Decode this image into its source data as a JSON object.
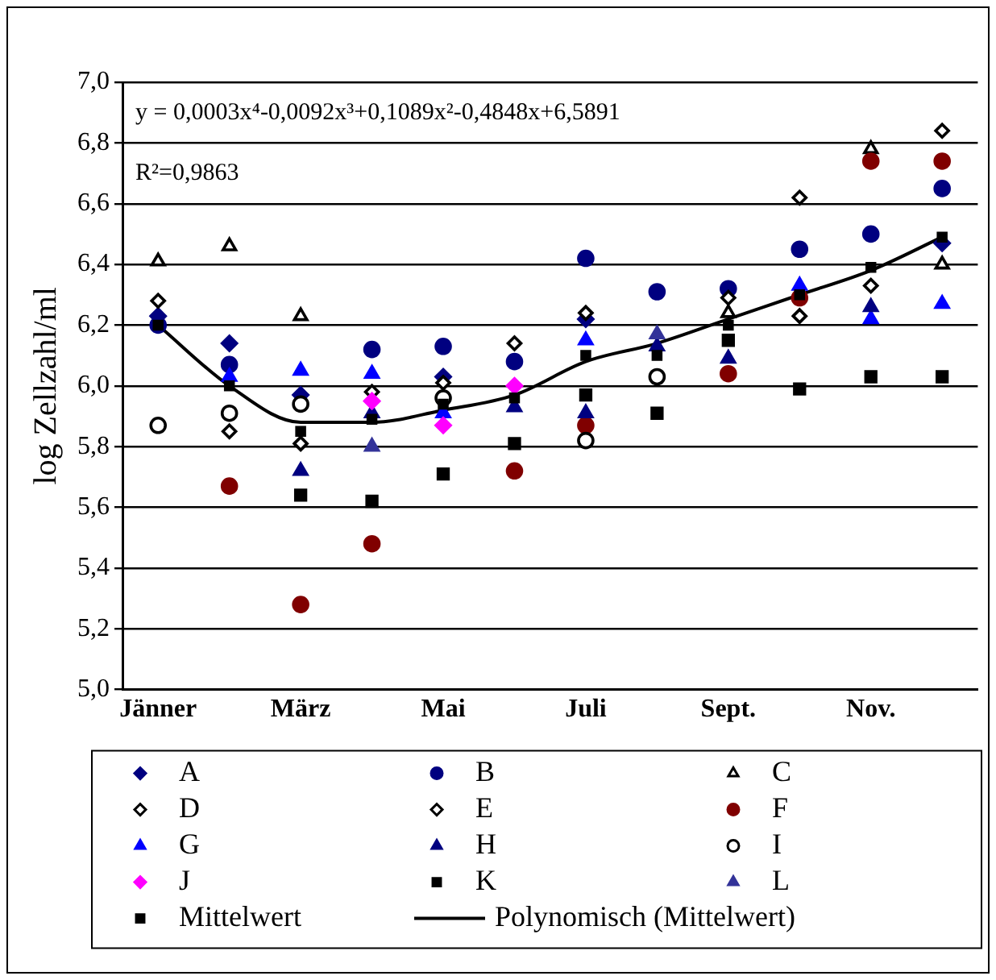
{
  "chart_data": {
    "type": "scatter",
    "ylabel": "log Zellzahl/ml",
    "annotations": [
      "y = 0,0003x⁴-0,0092x³+0,1089x²-0,4848x+6,5891",
      "R²=0,9863"
    ],
    "categories": [
      "Jänner",
      null,
      "März",
      null,
      "Mai",
      null,
      "Juli",
      null,
      "Sept.",
      null,
      "Nov.",
      null
    ],
    "ylim": [
      5,
      7
    ],
    "yticks": [
      {
        "value": 5,
        "label": "5,0"
      },
      {
        "value": 5.2,
        "label": "5,2"
      },
      {
        "value": 5.4,
        "label": "5,4"
      },
      {
        "value": 5.6,
        "label": "5,6"
      },
      {
        "value": 5.8,
        "label": "5,8"
      },
      {
        "value": 6,
        "label": "6,0"
      },
      {
        "value": 6.2,
        "label": "6,2"
      },
      {
        "value": 6.4,
        "label": "6,4"
      },
      {
        "value": 6.6,
        "label": "6,6"
      },
      {
        "value": 6.8,
        "label": "6,8"
      },
      {
        "value": 7,
        "label": "7,0"
      }
    ],
    "grid": "y",
    "legend": "bottom",
    "series": [
      {
        "name": "A",
        "color": "#000080",
        "marker": "diamond",
        "values": [
          6.23,
          6.14,
          5.97,
          null,
          6.03,
          null,
          6.22,
          null,
          null,
          null,
          null,
          6.47
        ]
      },
      {
        "name": "B",
        "color": "#000080",
        "marker": "circle",
        "values": [
          6.2,
          6.07,
          null,
          6.12,
          6.13,
          6.08,
          6.42,
          6.31,
          6.32,
          6.45,
          6.5,
          6.65
        ]
      },
      {
        "name": "C",
        "color": "#000000",
        "marker": "triangle-open",
        "values": [
          6.41,
          6.46,
          6.23,
          null,
          null,
          null,
          null,
          null,
          6.24,
          null,
          6.78,
          6.4
        ]
      },
      {
        "name": "D",
        "color": "#000000",
        "marker": "diamond-open",
        "values": [
          6.28,
          5.85,
          null,
          5.98,
          null,
          null,
          6.24,
          null,
          6.29,
          6.23,
          null,
          6.84
        ]
      },
      {
        "name": "E",
        "color": "#000000",
        "marker": "diamond-open",
        "values": [
          null,
          null,
          5.81,
          null,
          6.01,
          6.14,
          null,
          null,
          null,
          6.62,
          6.33,
          null
        ]
      },
      {
        "name": "F",
        "color": "#800000",
        "marker": "circle",
        "values": [
          null,
          5.67,
          5.28,
          5.48,
          null,
          5.72,
          5.87,
          null,
          6.04,
          6.29,
          6.74,
          6.74
        ]
      },
      {
        "name": "G",
        "color": "#0000ff",
        "marker": "triangle",
        "values": [
          null,
          6.03,
          6.05,
          6.04,
          5.91,
          null,
          6.15,
          null,
          null,
          6.33,
          6.22,
          6.27
        ]
      },
      {
        "name": "H",
        "color": "#000080",
        "marker": "triangle",
        "values": [
          null,
          null,
          5.72,
          5.91,
          null,
          5.93,
          5.91,
          6.13,
          6.09,
          null,
          6.26,
          null
        ]
      },
      {
        "name": "I",
        "color": "#000000",
        "marker": "circle-open",
        "values": [
          5.87,
          5.91,
          5.94,
          null,
          5.96,
          null,
          5.82,
          6.03,
          null,
          null,
          null,
          null
        ]
      },
      {
        "name": "J",
        "color": "#ff00ff",
        "marker": "diamond",
        "values": [
          null,
          null,
          null,
          5.95,
          5.87,
          6.0,
          null,
          null,
          null,
          null,
          null,
          null
        ]
      },
      {
        "name": "K",
        "color": "#000000",
        "marker": "square",
        "values": [
          null,
          null,
          5.64,
          5.62,
          5.71,
          5.81,
          5.97,
          5.91,
          6.15,
          5.99,
          6.03,
          6.03
        ]
      },
      {
        "name": "L",
        "color": "#333399",
        "marker": "triangle",
        "values": [
          null,
          null,
          null,
          5.8,
          null,
          null,
          null,
          6.17,
          null,
          null,
          null,
          null
        ]
      },
      {
        "name": "Mittelwert",
        "color": "#000000",
        "marker": "square",
        "values": [
          6.2,
          6.0,
          5.85,
          5.89,
          5.94,
          5.96,
          6.1,
          6.1,
          6.2,
          6.3,
          6.39,
          6.49
        ]
      },
      {
        "name": "Polynomisch (Mittelwert)",
        "type": "line",
        "color": "#000000",
        "marker": "none",
        "line_style": "solid",
        "values": [
          6.2,
          6.0,
          5.88,
          5.88,
          5.92,
          5.97,
          6.08,
          6.14,
          6.22,
          6.3,
          6.38,
          6.49
        ]
      }
    ]
  }
}
